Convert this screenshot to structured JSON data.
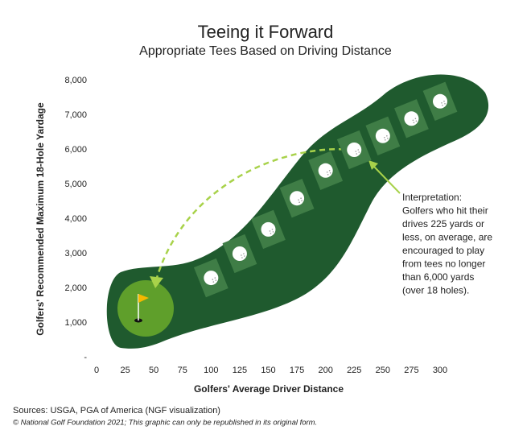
{
  "chart_data": {
    "type": "scatter",
    "title": "Teeing it Forward",
    "subtitle": "Appropriate Tees Based on Driving Distance",
    "x_label": "Golfers' Average Driver Distance",
    "y_label": "Golfers' Recommended Maximum 18-Hole Yardage",
    "x": [
      100,
      125,
      150,
      175,
      200,
      225,
      250,
      275,
      300
    ],
    "series": [
      {
        "color": "#ffffff",
        "values": [
          2300,
          3000,
          3700,
          4600,
          5400,
          6000,
          6400,
          6900,
          7400
        ]
      }
    ],
    "xlim": [
      0,
      300
    ],
    "xticks": [
      0,
      25,
      50,
      75,
      100,
      125,
      150,
      175,
      200,
      225,
      250,
      275,
      300
    ],
    "ylim": [
      0,
      8000
    ],
    "yticks": [
      {
        "value": 0,
        "label": "-"
      },
      {
        "value": 1000,
        "label": "1,000"
      },
      {
        "value": 2000,
        "label": "2,000"
      },
      {
        "value": 3000,
        "label": "3,000"
      },
      {
        "value": 4000,
        "label": "4,000"
      },
      {
        "value": 5000,
        "label": "5,000"
      },
      {
        "value": 6000,
        "label": "6,000"
      },
      {
        "value": 7000,
        "label": "7,000"
      },
      {
        "value": 8000,
        "label": "8,000"
      }
    ],
    "annotation": [
      "Interpretation:",
      "Golfers who hit their",
      "drives 225 yards or",
      "less, on average, are",
      "encouraged to play",
      "from tees no longer",
      "than 6,000 yards",
      "(over 18 holes)."
    ],
    "source": "Sources: USGA, PGA of America (NGF visualization)",
    "copyright": "© National Golf Foundation 2021; This graphic can only be republished in its original form."
  }
}
